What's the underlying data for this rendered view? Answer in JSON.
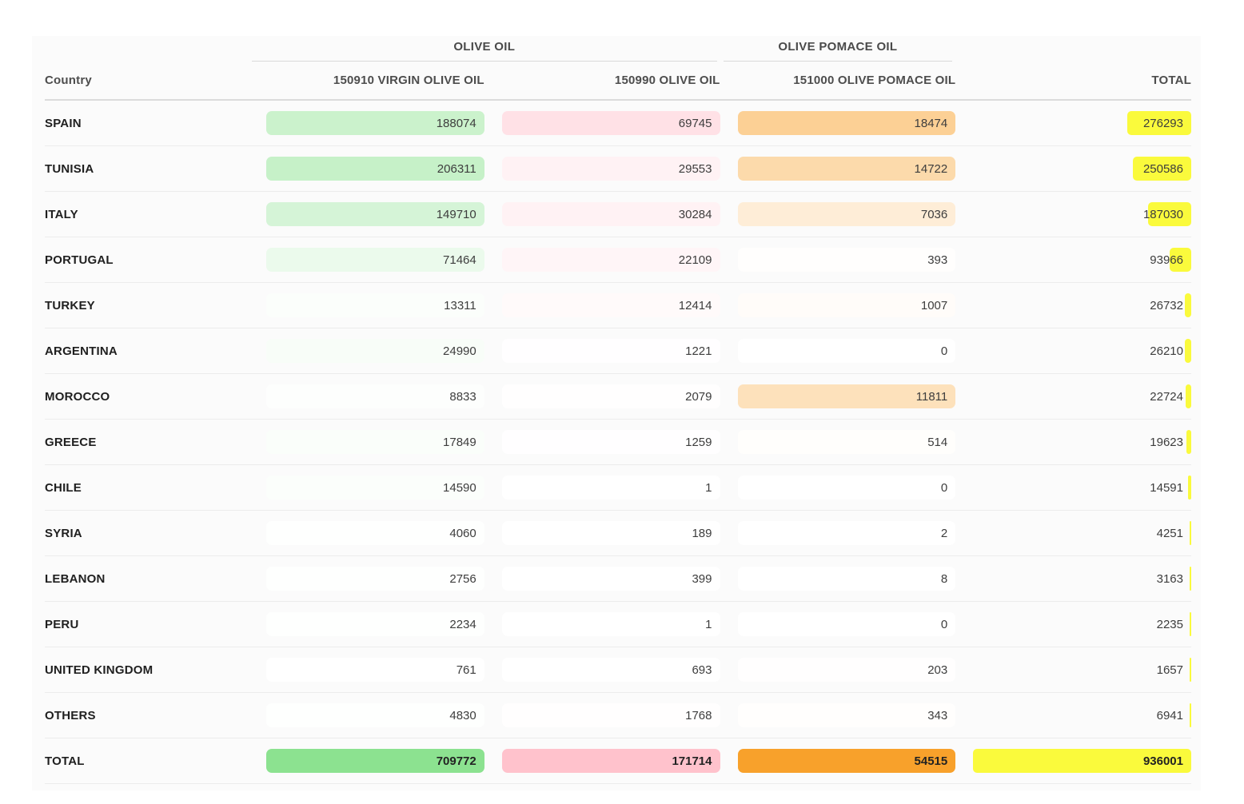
{
  "chart_data": {
    "type": "table",
    "group_headers": [
      {
        "label": "OLIVE OIL",
        "span": 2
      },
      {
        "label": "OLIVE POMACE OIL",
        "span": 1
      }
    ],
    "columns": [
      "Country",
      "150910 VIRGIN OLIVE OIL",
      "150990 OLIVE OIL",
      "151000 OLIVE POMACE OIL",
      "TOTAL"
    ],
    "rows": [
      {
        "country": "SPAIN",
        "virgin_olive_oil": 188074,
        "olive_oil": 69745,
        "pomace_oil": 18474,
        "total": 276293
      },
      {
        "country": "TUNISIA",
        "virgin_olive_oil": 206311,
        "olive_oil": 29553,
        "pomace_oil": 14722,
        "total": 250586
      },
      {
        "country": "ITALY",
        "virgin_olive_oil": 149710,
        "olive_oil": 30284,
        "pomace_oil": 7036,
        "total": 187030
      },
      {
        "country": "PORTUGAL",
        "virgin_olive_oil": 71464,
        "olive_oil": 22109,
        "pomace_oil": 393,
        "total": 93966
      },
      {
        "country": "TURKEY",
        "virgin_olive_oil": 13311,
        "olive_oil": 12414,
        "pomace_oil": 1007,
        "total": 26732
      },
      {
        "country": "ARGENTINA",
        "virgin_olive_oil": 24990,
        "olive_oil": 1221,
        "pomace_oil": 0,
        "total": 26210
      },
      {
        "country": "MOROCCO",
        "virgin_olive_oil": 8833,
        "olive_oil": 2079,
        "pomace_oil": 11811,
        "total": 22724
      },
      {
        "country": "GREECE",
        "virgin_olive_oil": 17849,
        "olive_oil": 1259,
        "pomace_oil": 514,
        "total": 19623
      },
      {
        "country": "CHILE",
        "virgin_olive_oil": 14590,
        "olive_oil": 1,
        "pomace_oil": 0,
        "total": 14591
      },
      {
        "country": "SYRIA",
        "virgin_olive_oil": 4060,
        "olive_oil": 189,
        "pomace_oil": 2,
        "total": 4251
      },
      {
        "country": "LEBANON",
        "virgin_olive_oil": 2756,
        "olive_oil": 399,
        "pomace_oil": 8,
        "total": 3163
      },
      {
        "country": "PERU",
        "virgin_olive_oil": 2234,
        "olive_oil": 1,
        "pomace_oil": 0,
        "total": 2235
      },
      {
        "country": "UNITED KINGDOM",
        "virgin_olive_oil": 761,
        "olive_oil": 693,
        "pomace_oil": 203,
        "total": 1657
      },
      {
        "country": "OTHERS",
        "virgin_olive_oil": 4830,
        "olive_oil": 1768,
        "pomace_oil": 343,
        "total": 6941
      }
    ],
    "total_row": {
      "country": "TOTAL",
      "virgin_olive_oil": 709772,
      "olive_oil": 171714,
      "pomace_oil": 54515,
      "total": 936001
    },
    "colors": {
      "virgin_olive_oil": "#8ce290",
      "olive_oil": "#ffc2cc",
      "pomace_oil": "#f8a12b",
      "total": "#fafa3c"
    },
    "layout": {
      "heat_max_alpha": 0.5,
      "legend": "none",
      "grid": "horizontal-row-separators"
    }
  }
}
